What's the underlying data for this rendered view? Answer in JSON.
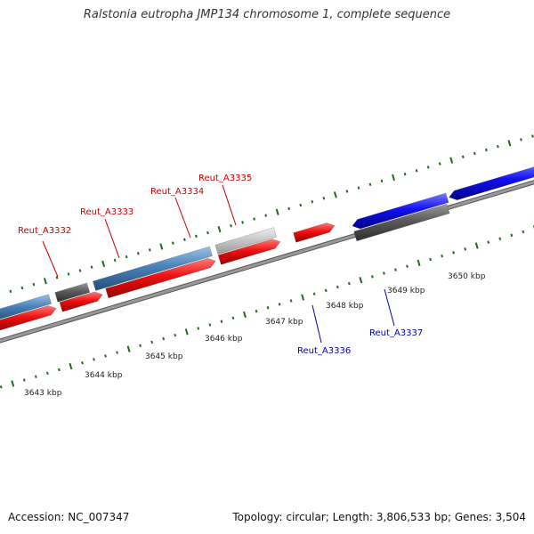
{
  "title": "Ralstonia eutropha JMP134 chromosome 1, complete sequence",
  "footer": {
    "accession": "Accession: NC_007347",
    "stats": "Topology: circular; Length: 3,806,533 bp; Genes: 3,504"
  },
  "colors": {
    "backbone": "#7a7a7a",
    "ticks": "#1e6b1e",
    "forward_label": "#cc0000",
    "reverse_label": "#0000aa",
    "red_feature": "#ee1111",
    "steelblue_feature": "#4a82b8",
    "dark_feature": "#5a5a5a",
    "light_feature": "#c8c8c8",
    "blue_feature": "#1111ee"
  },
  "kbp_labels": [
    "3643 kbp",
    "3644 kbp",
    "3645 kbp",
    "3646 kbp",
    "3647 kbp",
    "3648 kbp",
    "3649 kbp",
    "3650 kbp"
  ],
  "gene_labels": [
    {
      "text": "Reut_A3332",
      "strand": "forward"
    },
    {
      "text": "Reut_A3333",
      "strand": "forward"
    },
    {
      "text": "Reut_A3334",
      "strand": "forward"
    },
    {
      "text": "Reut_A3335",
      "strand": "forward"
    },
    {
      "text": "Reut_A3336",
      "strand": "reverse"
    },
    {
      "text": "Reut_A3337",
      "strand": "reverse"
    }
  ],
  "features": [
    {
      "track": 0,
      "start": 0.0,
      "end": 1.42,
      "color": "steelblue"
    },
    {
      "track": 0,
      "start": 1.58,
      "end": 2.37,
      "color": "dark"
    },
    {
      "track": 0,
      "start": 2.52,
      "end": 5.41,
      "color": "steelblue"
    },
    {
      "track": 0,
      "start": 5.55,
      "end": 7.0,
      "color": "light"
    },
    {
      "track": 1,
      "start": 0.0,
      "end": 1.5,
      "color": "red",
      "arrow": "right"
    },
    {
      "track": 1,
      "start": 1.62,
      "end": 2.65,
      "color": "red",
      "arrow": "right"
    },
    {
      "track": 1,
      "start": 2.76,
      "end": 5.45,
      "color": "red",
      "arrow": "right"
    },
    {
      "track": 1,
      "start": 5.55,
      "end": 7.05,
      "color": "red",
      "arrow": "right"
    },
    {
      "track": 1,
      "start": 7.41,
      "end": 8.4,
      "color": "red",
      "arrow": "right"
    },
    {
      "track": 2,
      "start": 8.8,
      "end": 11.15,
      "color": "blue",
      "arrow": "left"
    },
    {
      "track": 2,
      "start": 11.2,
      "end": 13.75,
      "color": "blue",
      "arrow": "left"
    },
    {
      "track": 2,
      "start": 13.95,
      "end": 17.5,
      "color": "blue",
      "arrow": "left"
    },
    {
      "track": 3,
      "start": 8.8,
      "end": 11.1,
      "color": "dark"
    }
  ]
}
